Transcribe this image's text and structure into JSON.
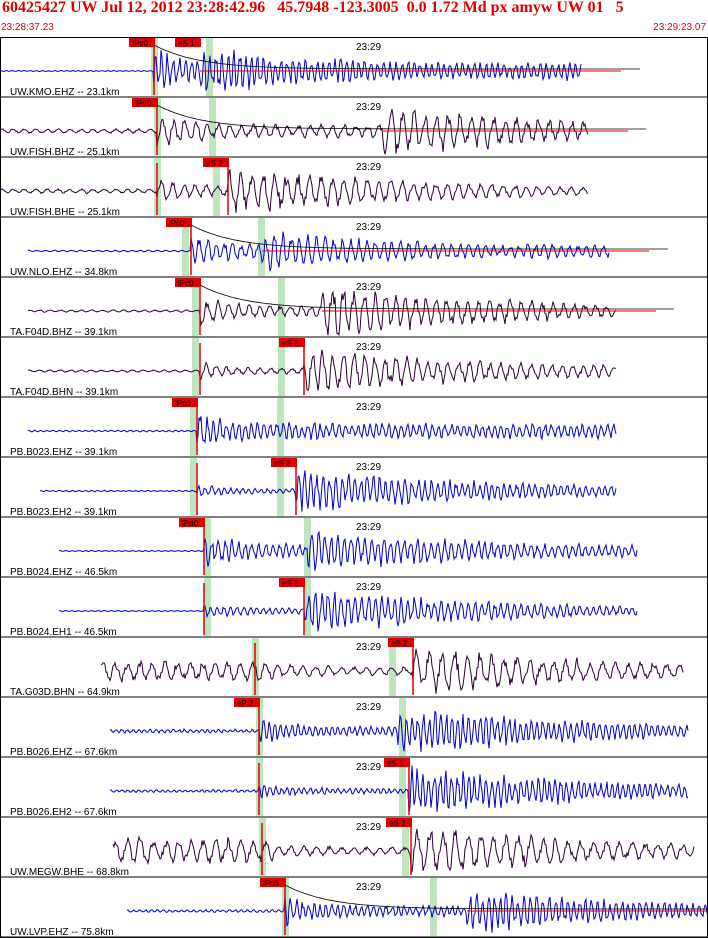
{
  "header": {
    "title": "60425427 UW Jul 12, 2012 23:28:42.96   45.7948 -123.3005  0.0 1.72 Md px amyw UW 01   5",
    "time_start": "23:28:37.23",
    "time_end": "23:29:23.07"
  },
  "colors": {
    "header_text": "#e00000",
    "pick_box": "#e00000",
    "pick_line": "#e00000",
    "coda_curve": "#000000",
    "green_band": "#bfe5bf",
    "trace_blue": "#0000cc",
    "trace_dark": "#2a0033",
    "panel_border": "#000000"
  },
  "chart_data": {
    "type": "seismogram",
    "minute_label": "23:29",
    "traces": [
      {
        "label": "UW.KMO.EHZ -- 23.1km",
        "color": "blue",
        "pick_label": "IPc0",
        "pick2_label": "eS 1",
        "pick_t": 0.218,
        "s_t": 0.283,
        "start_t": 0.0,
        "end_t": 0.82,
        "amp": 0.9,
        "noise": 0.02,
        "freq": 1.05,
        "coda": true,
        "s_amp": 0.8,
        "green": [
          0.218,
          0.295
        ]
      },
      {
        "label": "UW.FISH.BHZ -- 25.1km",
        "color": "dark",
        "pick_label": "iPd0",
        "pick2_label": "",
        "pick_t": 0.222,
        "s_t": 0.54,
        "start_t": 0.0,
        "end_t": 0.83,
        "amp": 0.7,
        "noise": 0.08,
        "freq": 0.55,
        "coda": true,
        "s_amp": 0.9,
        "green": [
          0.222,
          0.3
        ]
      },
      {
        "label": "UW.FISH.BHE -- 25.1km",
        "color": "dark",
        "pick_label": "eS 2",
        "pick2_label": "",
        "pick_t": 0.222,
        "s_t": 0.322,
        "start_t": 0.0,
        "end_t": 0.83,
        "amp": 0.5,
        "noise": 0.08,
        "freq": 0.55,
        "coda": false,
        "s_amp": 0.85,
        "green": [
          0.222,
          0.305
        ]
      },
      {
        "label": "UW.NLO.EHZ -- 34.8km",
        "color": "blue",
        "pick_label": "iPc0",
        "pick2_label": "",
        "pick_t": 0.27,
        "s_t": 0.37,
        "start_t": 0.04,
        "end_t": 0.86,
        "amp": 0.7,
        "noise": 0.03,
        "freq": 0.75,
        "coda": true,
        "s_amp": 0.7,
        "green": [
          0.262,
          0.368
        ]
      },
      {
        "label": "TA.F04D.BHZ -- 39.1km",
        "color": "dark",
        "pick_label": "iPc0",
        "pick2_label": "",
        "pick_t": 0.283,
        "s_t": 0.455,
        "start_t": 0.04,
        "end_t": 0.87,
        "amp": 0.55,
        "noise": 0.04,
        "freq": 0.6,
        "coda": true,
        "s_amp": 0.95,
        "green": [
          0.276,
          0.397
        ]
      },
      {
        "label": "TA.F04D.BHN -- 39.1km",
        "color": "dark",
        "pick_label": "eS 2",
        "pick2_label": "",
        "pick_t": 0.283,
        "s_t": 0.43,
        "start_t": 0.04,
        "end_t": 0.87,
        "amp": 0.3,
        "noise": 0.04,
        "freq": 0.6,
        "coda": false,
        "s_amp": 0.85,
        "green": [
          0.276,
          0.397
        ]
      },
      {
        "label": "PB.B023.EHZ -- 39.1km",
        "color": "blue",
        "pick_label": "iPc0",
        "pick2_label": "",
        "pick_t": 0.278,
        "s_t": 0.4,
        "start_t": 0.04,
        "end_t": 0.87,
        "amp": 0.75,
        "noise": 0.03,
        "freq": 1.0,
        "coda": false,
        "s_amp": 0.35,
        "green": [
          0.272,
          0.395
        ]
      },
      {
        "label": "PB.B023.EH2 -- 39.1km",
        "color": "blue",
        "pick_label": "eS 2",
        "pick2_label": "",
        "pick_t": 0.278,
        "s_t": 0.418,
        "start_t": 0.057,
        "end_t": 0.87,
        "amp": 0.25,
        "noise": 0.025,
        "freq": 1.0,
        "coda": false,
        "s_amp": 0.8,
        "green": [
          0.272,
          0.395
        ]
      },
      {
        "label": "PB.B024.EHZ -- 46.5km",
        "color": "blue",
        "pick_label": "iPd0",
        "pick2_label": "",
        "pick_t": 0.288,
        "s_t": 0.435,
        "start_t": 0.083,
        "end_t": 0.9,
        "amp": 0.7,
        "noise": 0.02,
        "freq": 0.95,
        "coda": false,
        "s_amp": 0.75,
        "green": [
          0.292,
          0.433
        ]
      },
      {
        "label": "PB.B024.EH1 -- 46.5km",
        "color": "blue",
        "pick_label": "eS 2",
        "pick2_label": "",
        "pick_t": 0.288,
        "s_t": 0.43,
        "start_t": 0.083,
        "end_t": 0.9,
        "amp": 0.3,
        "noise": 0.02,
        "freq": 0.95,
        "coda": false,
        "s_amp": 0.8,
        "green": [
          0.292,
          0.433
        ]
      },
      {
        "label": "TA.G03D.BHN -- 64.9km",
        "color": "dark",
        "pick_label": "eS 2",
        "pick2_label": "",
        "pick_t": 0.36,
        "s_t": 0.584,
        "start_t": 0.143,
        "end_t": 0.965,
        "amp": 0.45,
        "noise": 0.35,
        "freq": 0.5,
        "coda": false,
        "s_amp": 0.9,
        "green": [
          0.36,
          0.553
        ]
      },
      {
        "label": "PB.B026.EHZ -- 67.6km",
        "color": "blue",
        "pick_label": "eP 2",
        "pick2_label": "",
        "pick_t": 0.366,
        "s_t": 0.562,
        "start_t": 0.155,
        "end_t": 0.972,
        "amp": 0.5,
        "noise": 0.07,
        "freq": 1.1,
        "coda": false,
        "s_amp": 0.85,
        "green": [
          0.366,
          0.568
        ]
      },
      {
        "label": "PB.B026.EH2 -- 67.6km",
        "color": "blue",
        "pick_label": "eS 1",
        "pick2_label": "",
        "pick_t": 0.366,
        "s_t": 0.577,
        "start_t": 0.155,
        "end_t": 0.972,
        "amp": 0.3,
        "noise": 0.05,
        "freq": 1.1,
        "coda": false,
        "s_amp": 0.85,
        "green": [
          0.366,
          0.568
        ]
      },
      {
        "label": "UW.MEGW.BHE -- 68.8km",
        "color": "dark",
        "pick_label": "eS 2",
        "pick2_label": "",
        "pick_t": 0.37,
        "s_t": 0.58,
        "start_t": 0.16,
        "end_t": 0.98,
        "amp": 0.4,
        "noise": 0.45,
        "freq": 0.5,
        "coda": false,
        "s_amp": 0.9,
        "green": [
          0.37,
          0.572
        ]
      },
      {
        "label": "UW.LVP.EHZ -- 75.8km",
        "color": "blue",
        "pick_label": "iPc0",
        "pick2_label": "",
        "pick_t": 0.403,
        "s_t": 0.66,
        "start_t": 0.18,
        "end_t": 1.0,
        "amp": 0.6,
        "noise": 0.05,
        "freq": 1.05,
        "coda": true,
        "s_amp": 0.8,
        "green": [
          0.403,
          0.612
        ]
      }
    ]
  }
}
